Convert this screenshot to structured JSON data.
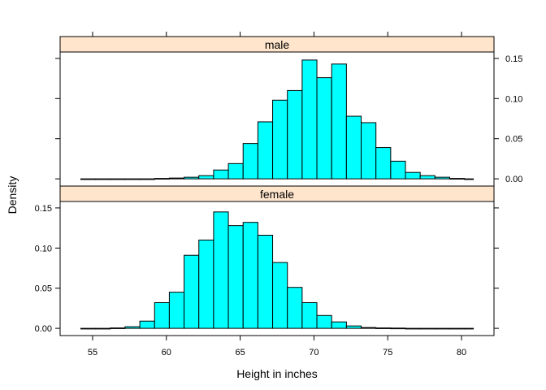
{
  "chart_data": {
    "type": "histogram",
    "layout": "two panels stacked vertically, shared x-axis",
    "xlabel": "Height in inches",
    "ylabel": "Density",
    "xlim": [
      52.8,
      82.2
    ],
    "ylim": [
      -0.009,
      0.158
    ],
    "x_ticks": [
      55,
      60,
      65,
      70,
      75,
      80
    ],
    "y_ticks": [
      0.0,
      0.05,
      0.1,
      0.15
    ],
    "y_tick_labels": [
      "0.00",
      "0.05",
      "0.10",
      "0.15"
    ],
    "bin_edges": [
      54.2,
      55.2,
      56.2,
      57.2,
      58.2,
      59.2,
      60.2,
      61.2,
      62.2,
      63.2,
      64.2,
      65.2,
      66.2,
      67.2,
      68.2,
      69.2,
      70.2,
      71.2,
      72.2,
      73.2,
      74.2,
      75.2,
      76.2,
      77.2,
      78.2,
      79.2,
      80.2,
      80.8
    ],
    "panels": [
      {
        "name": "male",
        "values": [
          0,
          0,
          0,
          0,
          0,
          0.0005,
          0.001,
          0.002,
          0.004,
          0.011,
          0.019,
          0.044,
          0.071,
          0.098,
          0.11,
          0.148,
          0.126,
          0.143,
          0.078,
          0.07,
          0.039,
          0.022,
          0.008,
          0.004,
          0.002,
          0.0005,
          0
        ]
      },
      {
        "name": "female",
        "values": [
          0,
          0,
          0.0005,
          0.002,
          0.009,
          0.032,
          0.045,
          0.091,
          0.11,
          0.145,
          0.128,
          0.132,
          0.116,
          0.082,
          0.051,
          0.032,
          0.016,
          0.008,
          0.003,
          0.001,
          0.0005,
          0.0003,
          0,
          0,
          0,
          0,
          0
        ]
      }
    ]
  },
  "colors": {
    "bar_fill": "#00ffff",
    "strip_fill": "#ffe5cc",
    "outline": "#000000"
  }
}
